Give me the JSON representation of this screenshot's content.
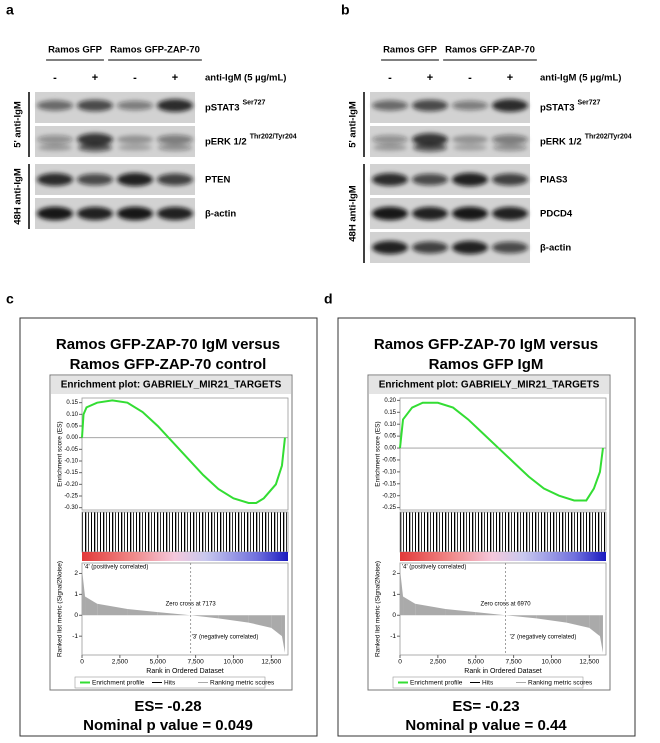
{
  "blots": [
    {
      "label": "a",
      "groups": [
        "Ramos GFP",
        "Ramos GFP-ZAP-70"
      ],
      "treatments": [
        "-",
        "+",
        "-",
        "+"
      ],
      "treatment_label": "anti-IgM (5 µg/mL)",
      "sections": [
        {
          "label": "5' anti-IgM",
          "blots": [
            {
              "protein": "pSTAT3",
              "sup": "Ser727"
            },
            {
              "protein": "pERK 1/2",
              "sup": "Thr202/Tyr204"
            }
          ]
        },
        {
          "label": "48H anti-IgM",
          "blots": [
            {
              "protein": "PTEN"
            },
            {
              "protein": "β-actin"
            }
          ]
        }
      ]
    },
    {
      "label": "b",
      "groups": [
        "Ramos GFP",
        "Ramos GFP-ZAP-70"
      ],
      "treatments": [
        "-",
        "+",
        "-",
        "+"
      ],
      "treatment_label": "anti-IgM (5 µg/mL)",
      "sections": [
        {
          "label": "5' anti-IgM",
          "blots": [
            {
              "protein": "pSTAT3",
              "sup": "Ser727"
            },
            {
              "protein": "pERK 1/2",
              "sup": "Thr202/Tyr204"
            }
          ]
        },
        {
          "label": "48H anti-IgM",
          "blots": [
            {
              "protein": "PIAS3"
            },
            {
              "protein": "PDCD4"
            },
            {
              "protein": "β-actin"
            }
          ]
        }
      ]
    }
  ],
  "chart_data": [
    {
      "type": "line",
      "panel_label": "c",
      "title": [
        "Ramos GFP-ZAP-70 IgM versus",
        "Ramos GFP-ZAP-70 control"
      ],
      "plot_title": "Enrichment plot: GABRIELY_MIR21_TARGETS",
      "ylabel": "Enrichment score (ES)",
      "y2label": "Ranked list metric (Signal2Noise)",
      "xlabel": "Rank in Ordered Dataset",
      "xlim": [
        0,
        13600
      ],
      "xticks": [
        0,
        {
          "value": 2500,
          "label": "2,500"
        },
        {
          "value": 5000,
          "label": "5,000"
        },
        {
          "value": 7500,
          "label": "7,500"
        },
        {
          "value": 10000,
          "label": "10,000"
        },
        {
          "value": 12500,
          "label": "12,500"
        }
      ],
      "ylim": [
        -0.31,
        0.17
      ],
      "yticks": [
        0.15,
        {
          "value": 0.1,
          "label": "0.10"
        },
        0.05,
        {
          "value": 0,
          "label": "0.00"
        },
        -0.05,
        {
          "value": -0.1,
          "label": "-0.10"
        },
        -0.15,
        {
          "value": -0.2,
          "label": "-0.20"
        },
        -0.25,
        {
          "value": -0.3,
          "label": "-0.30"
        }
      ],
      "y2lim": [
        -1.9,
        2.5
      ],
      "y2ticks": [
        2,
        1,
        0,
        -1
      ],
      "series": [
        {
          "name": "Enrichment profile",
          "color": "#33dd33",
          "x": [
            0,
            100,
            300,
            1000,
            2000,
            3000,
            4000,
            5000,
            6000,
            7000,
            8000,
            9000,
            10000,
            11000,
            11500,
            12000,
            12800,
            13200,
            13400
          ],
          "values": [
            0,
            0.1,
            0.13,
            0.15,
            0.16,
            0.15,
            0.11,
            0.05,
            -0.02,
            -0.09,
            -0.16,
            -0.22,
            -0.26,
            -0.28,
            -0.28,
            -0.26,
            -0.2,
            -0.12,
            0
          ]
        },
        {
          "name": "Hits",
          "color": "#000000"
        },
        {
          "name": "Ranking metric scores",
          "color": "#aaaaaa",
          "axis": "y2",
          "x": [
            0,
            200,
            1000,
            3000,
            5000,
            7173,
            9000,
            11000,
            12500,
            13200,
            13400
          ],
          "values": [
            2.2,
            0.9,
            0.55,
            0.3,
            0.15,
            0,
            -0.15,
            -0.35,
            -0.6,
            -1,
            -1.8
          ]
        }
      ],
      "zero_cross": 7173,
      "zero_cross_label": "Zero cross at 7173",
      "pos_label": "'4' (positively correlated)",
      "neg_label": "'3' (negatively correlated)",
      "es": "ES= -0.28",
      "pvalue": "Nominal p value = 0.049"
    },
    {
      "type": "line",
      "panel_label": "d",
      "title": [
        "Ramos GFP-ZAP-70 IgM versus",
        "Ramos GFP IgM"
      ],
      "plot_title": "Enrichment plot: GABRIELY_MIR21_TARGETS",
      "ylabel": "Enrichment score (ES)",
      "y2label": "Ranked list metric (Signal2Noise)",
      "xlabel": "Rank in Ordered Dataset",
      "xlim": [
        0,
        13600
      ],
      "xticks": [
        0,
        {
          "value": 2500,
          "label": "2,500"
        },
        {
          "value": 5000,
          "label": "5,000"
        },
        {
          "value": 7500,
          "label": "7,500"
        },
        {
          "value": 10000,
          "label": "10,000"
        },
        {
          "value": 12500,
          "label": "12,500"
        }
      ],
      "ylim": [
        -0.26,
        0.21
      ],
      "yticks": [
        {
          "value": 0.2,
          "label": "0.20"
        },
        0.15,
        {
          "value": 0.1,
          "label": "0.10"
        },
        0.05,
        {
          "value": 0,
          "label": "0.00"
        },
        -0.05,
        {
          "value": -0.1,
          "label": "-0.10"
        },
        -0.15,
        {
          "value": -0.2,
          "label": "-0.20"
        },
        -0.25
      ],
      "y2lim": [
        -1.9,
        2.5
      ],
      "y2ticks": [
        2,
        1,
        0,
        -1
      ],
      "series": [
        {
          "name": "Enrichment profile",
          "color": "#33dd33",
          "x": [
            0,
            200,
            800,
            1500,
            2500,
            3500,
            4500,
            5500,
            6500,
            7500,
            8500,
            9500,
            10500,
            11500,
            12300,
            12800,
            13200,
            13400
          ],
          "values": [
            0,
            0.12,
            0.17,
            0.19,
            0.19,
            0.17,
            0.12,
            0.06,
            0,
            -0.06,
            -0.12,
            -0.17,
            -0.2,
            -0.22,
            -0.22,
            -0.17,
            -0.1,
            0
          ]
        },
        {
          "name": "Hits",
          "color": "#000000"
        },
        {
          "name": "Ranking metric scores",
          "color": "#aaaaaa",
          "axis": "y2",
          "x": [
            0,
            200,
            1000,
            3000,
            5000,
            6970,
            9000,
            11000,
            12500,
            13200,
            13400
          ],
          "values": [
            2.2,
            0.9,
            0.55,
            0.3,
            0.15,
            0,
            -0.15,
            -0.35,
            -0.6,
            -1,
            -1.8
          ]
        }
      ],
      "zero_cross": 6970,
      "zero_cross_label": "Zero cross at 6970",
      "pos_label": "'4' (positively correlated)",
      "neg_label": "'2' (negatively correlated)",
      "es": "ES= -0.23",
      "pvalue": "Nominal p value = 0.44"
    }
  ]
}
